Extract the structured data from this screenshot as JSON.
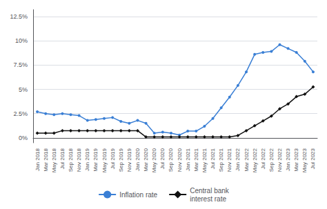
{
  "chart_data": {
    "type": "line",
    "categories": [
      "Jan 2018",
      "Mar 2018",
      "May 2018",
      "Jul 2018",
      "Sep 2018",
      "Nov 2018",
      "Jan 2019",
      "Mar 2019",
      "May 2019",
      "Jul 2019",
      "Sep 2019",
      "Nov 2019",
      "Jan 2020",
      "Mar 2020",
      "May 2020",
      "Jul 2020",
      "Sep 2020",
      "Nov 2020",
      "Jan 2021",
      "Mar 2021",
      "May 2021",
      "Jul 2021",
      "Sep 2021",
      "Nov 2021",
      "Jan 2022",
      "Mar 2022",
      "May 2022",
      "Jul 2022",
      "Sep 2022",
      "Nov 2022",
      "Jan 2023",
      "Mar 2023",
      "May 2023",
      "Jul 2023"
    ],
    "series": [
      {
        "name": "Inflation rate",
        "color": "#3a7fd5",
        "marker": "circle",
        "values": [
          2.7,
          2.5,
          2.4,
          2.5,
          2.4,
          2.3,
          1.8,
          1.9,
          2.0,
          2.1,
          1.7,
          1.5,
          1.8,
          1.5,
          0.5,
          0.6,
          0.5,
          0.3,
          0.7,
          0.7,
          1.2,
          2.0,
          3.1,
          4.2,
          5.4,
          6.8,
          8.6,
          8.8,
          8.9,
          9.6,
          9.2,
          8.8,
          7.9,
          6.8
        ]
      },
      {
        "name": "Central bank\ninterest rate",
        "color": "#111111",
        "marker": "diamond",
        "values": [
          0.5,
          0.5,
          0.5,
          0.75,
          0.75,
          0.75,
          0.75,
          0.75,
          0.75,
          0.75,
          0.75,
          0.75,
          0.75,
          0.1,
          0.1,
          0.1,
          0.1,
          0.1,
          0.1,
          0.1,
          0.1,
          0.1,
          0.1,
          0.1,
          0.25,
          0.75,
          1.25,
          1.75,
          2.25,
          3.0,
          3.5,
          4.25,
          4.5,
          5.25
        ]
      }
    ],
    "ylim": [
      -0.5,
      13.2
    ],
    "yticks": [
      {
        "value": 0,
        "label": "0%"
      },
      {
        "value": 2.5,
        "label": "2.5%"
      },
      {
        "value": 5.0,
        "label": "5%"
      },
      {
        "value": 7.5,
        "label": "7.5%"
      },
      {
        "value": 10.0,
        "label": "10%"
      },
      {
        "value": 12.5,
        "label": "12.5%"
      }
    ],
    "grid": true,
    "legend": "bottom"
  }
}
